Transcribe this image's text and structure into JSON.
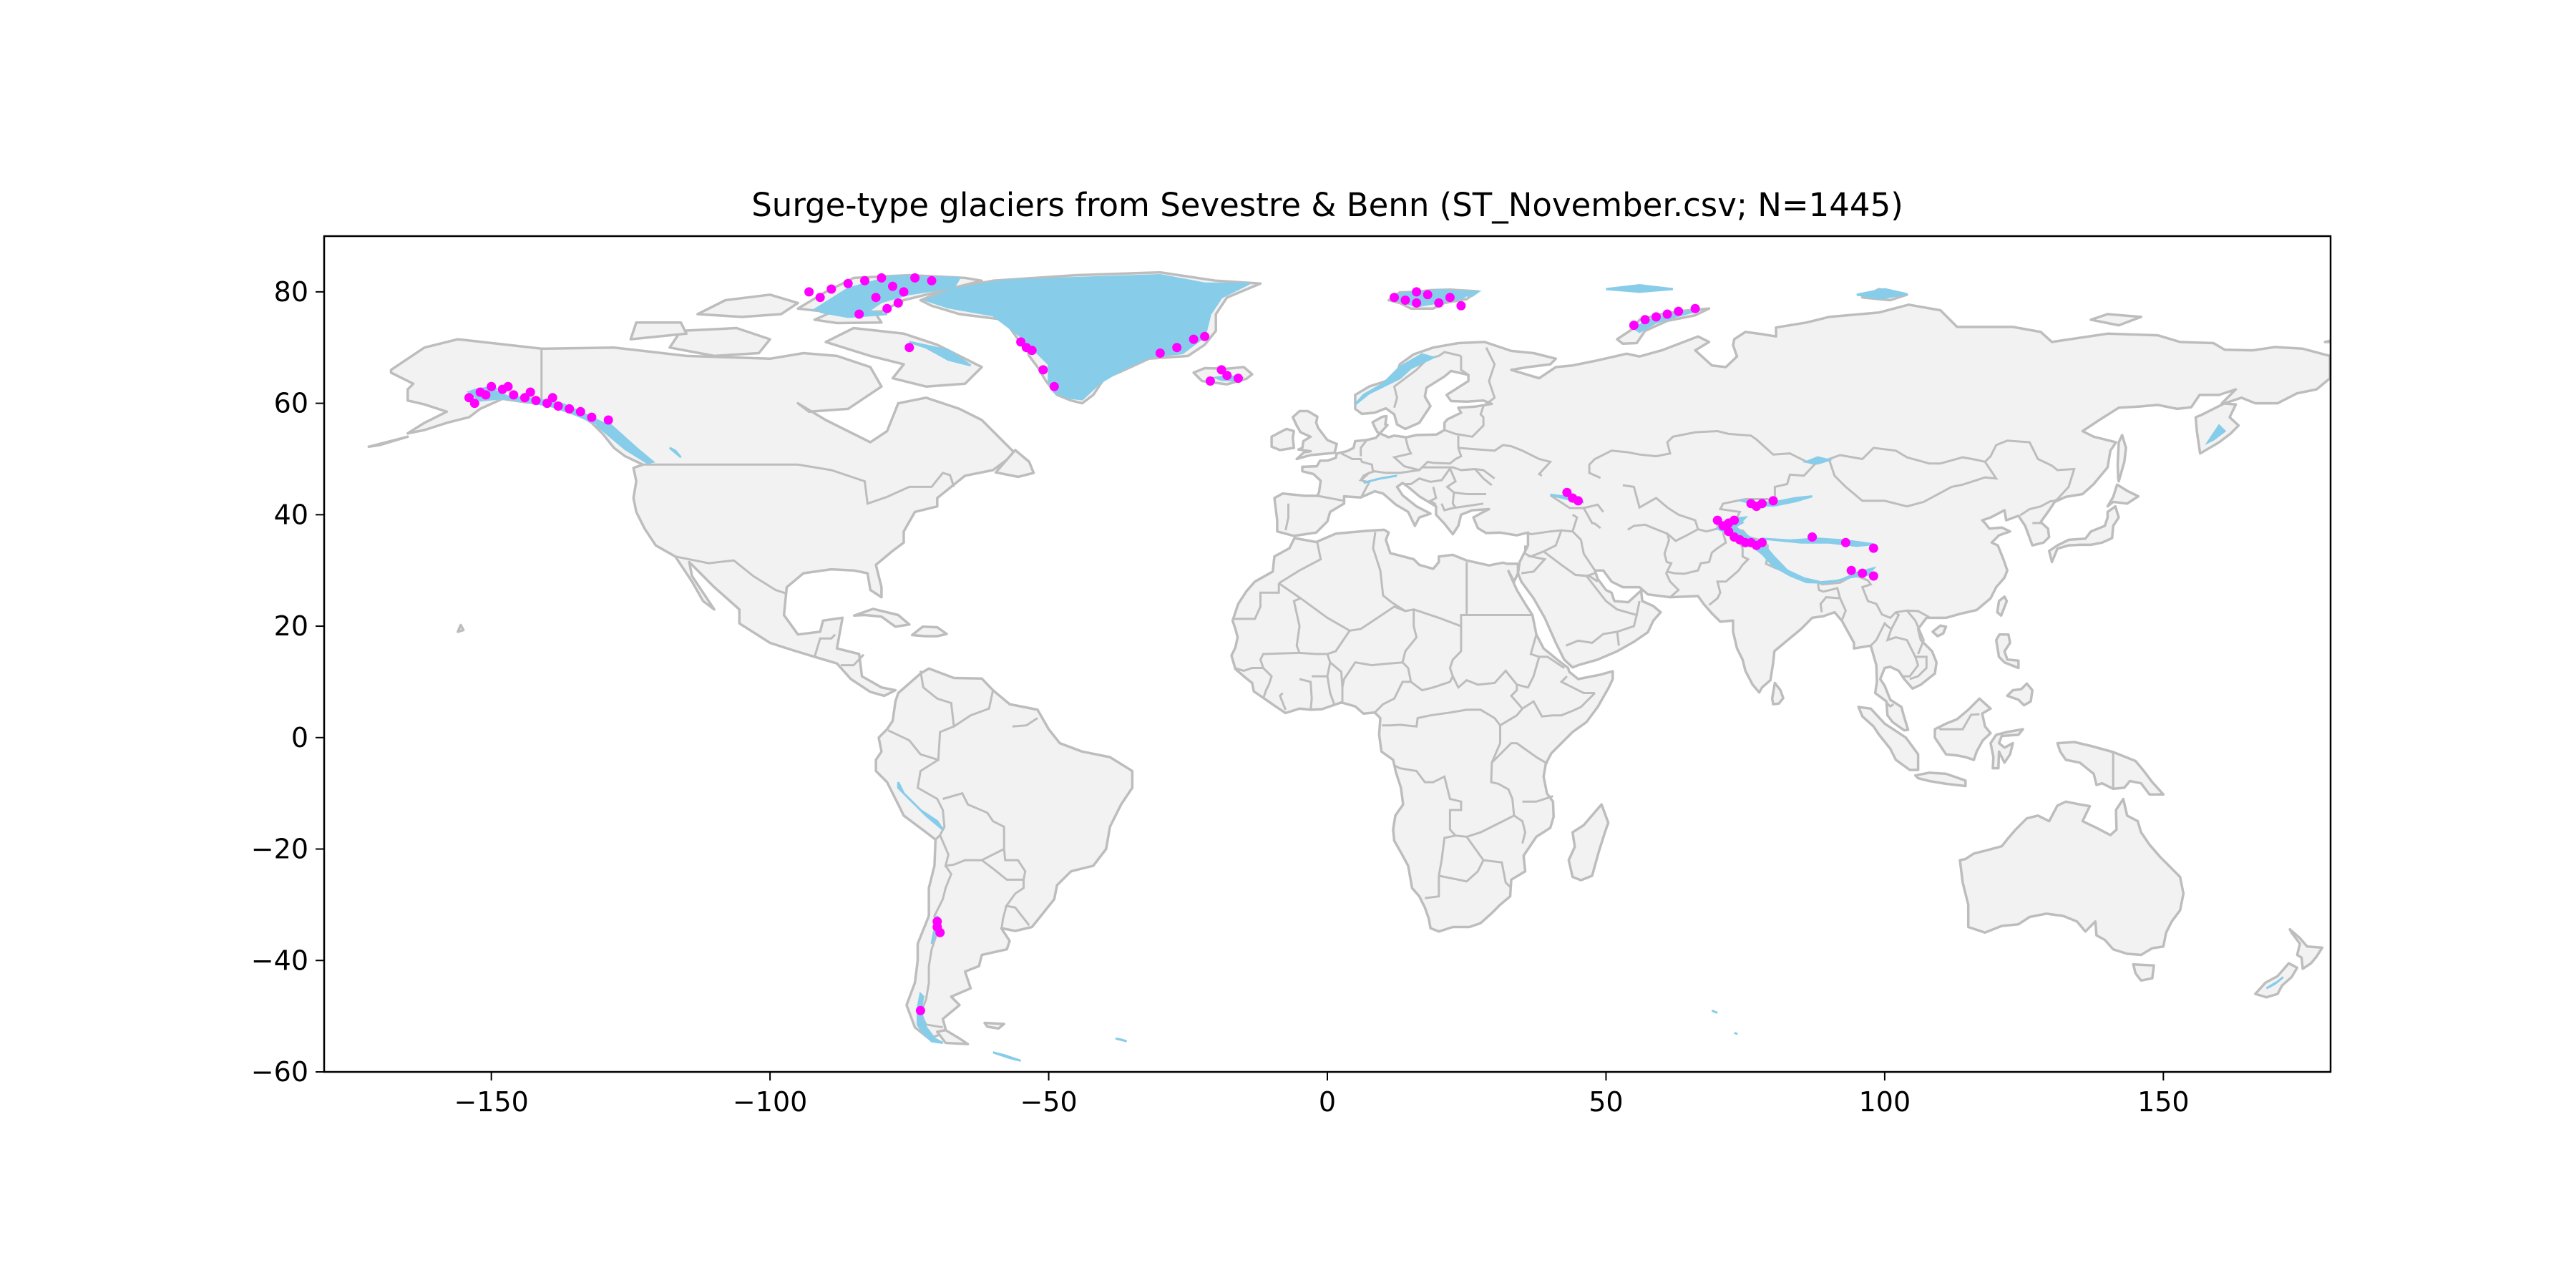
{
  "chart_data": {
    "type": "scatter",
    "title": "Surge-type glaciers from Sevestre & Benn (ST_November.csv; N=1445)",
    "xlabel": "",
    "ylabel": "",
    "xlim": [
      -180,
      180
    ],
    "ylim": [
      -60,
      90
    ],
    "x_ticks": [
      -150,
      -100,
      -50,
      0,
      50,
      100,
      150
    ],
    "x_tick_labels": [
      "−150",
      "−100",
      "−50",
      "0",
      "50",
      "100",
      "150"
    ],
    "y_ticks": [
      -60,
      -40,
      -20,
      0,
      20,
      40,
      60,
      80
    ],
    "y_tick_labels": [
      "−60",
      "−40",
      "−20",
      "0",
      "20",
      "40",
      "60",
      "80"
    ],
    "grid": false,
    "land_color": "#f2f2f2",
    "border_color": "#bdbdbd",
    "glacier_color": "#87cde9",
    "point_color": "#ff00ff",
    "series": [
      {
        "points": [
          [
            -154,
            61
          ],
          [
            -152,
            62
          ],
          [
            -150,
            63
          ],
          [
            -148,
            62.5
          ],
          [
            -146,
            61.5
          ],
          [
            -144,
            61
          ],
          [
            -142,
            60.5
          ],
          [
            -140,
            60
          ],
          [
            -138,
            59.5
          ],
          [
            -136,
            59
          ],
          [
            -134,
            58.5
          ],
          [
            -132,
            57.5
          ],
          [
            -129,
            57
          ],
          [
            -153,
            60
          ],
          [
            -151,
            61.5
          ],
          [
            -147,
            63
          ],
          [
            -143,
            62
          ],
          [
            -139,
            61
          ],
          [
            -93,
            80
          ],
          [
            -91,
            79
          ],
          [
            -89,
            80.5
          ],
          [
            -86,
            81.5
          ],
          [
            -83,
            82
          ],
          [
            -80,
            82.5
          ],
          [
            -78,
            81
          ],
          [
            -76,
            80
          ],
          [
            -74,
            82.5
          ],
          [
            -71,
            82
          ],
          [
            -81,
            79
          ],
          [
            -79,
            77
          ],
          [
            -77,
            78
          ],
          [
            -84,
            76
          ],
          [
            -75,
            70
          ],
          [
            -55,
            71
          ],
          [
            -54,
            70
          ],
          [
            -53,
            69.5
          ],
          [
            -51,
            66
          ],
          [
            -49,
            63
          ],
          [
            -30,
            69
          ],
          [
            -27,
            70
          ],
          [
            -24,
            71.5
          ],
          [
            -22,
            72
          ],
          [
            -19,
            66
          ],
          [
            -18,
            65
          ],
          [
            -16,
            64.5
          ],
          [
            -21,
            64
          ],
          [
            12,
            79
          ],
          [
            14,
            78.5
          ],
          [
            16,
            78
          ],
          [
            18,
            79.5
          ],
          [
            20,
            78
          ],
          [
            22,
            79
          ],
          [
            24,
            77.5
          ],
          [
            16,
            80
          ],
          [
            55,
            74
          ],
          [
            57,
            75
          ],
          [
            59,
            75.5
          ],
          [
            61,
            76
          ],
          [
            63,
            76.5
          ],
          [
            66,
            77
          ],
          [
            43,
            44
          ],
          [
            44,
            43
          ],
          [
            45,
            42.5
          ],
          [
            70,
            39
          ],
          [
            71,
            38
          ],
          [
            72,
            37
          ],
          [
            73,
            36
          ],
          [
            74,
            35.5
          ],
          [
            75,
            35
          ],
          [
            76,
            35
          ],
          [
            77,
            34.5
          ],
          [
            78,
            35
          ],
          [
            72,
            38.5
          ],
          [
            73,
            39
          ],
          [
            76,
            42
          ],
          [
            77,
            41.5
          ],
          [
            78,
            42
          ],
          [
            80,
            42.5
          ],
          [
            87,
            36
          ],
          [
            93,
            35
          ],
          [
            98,
            34
          ],
          [
            94,
            30
          ],
          [
            96,
            29.5
          ],
          [
            98,
            29
          ],
          [
            -70,
            -33
          ],
          [
            -70,
            -34
          ],
          [
            -69.5,
            -35
          ],
          [
            -73,
            -49
          ]
        ]
      }
    ]
  }
}
